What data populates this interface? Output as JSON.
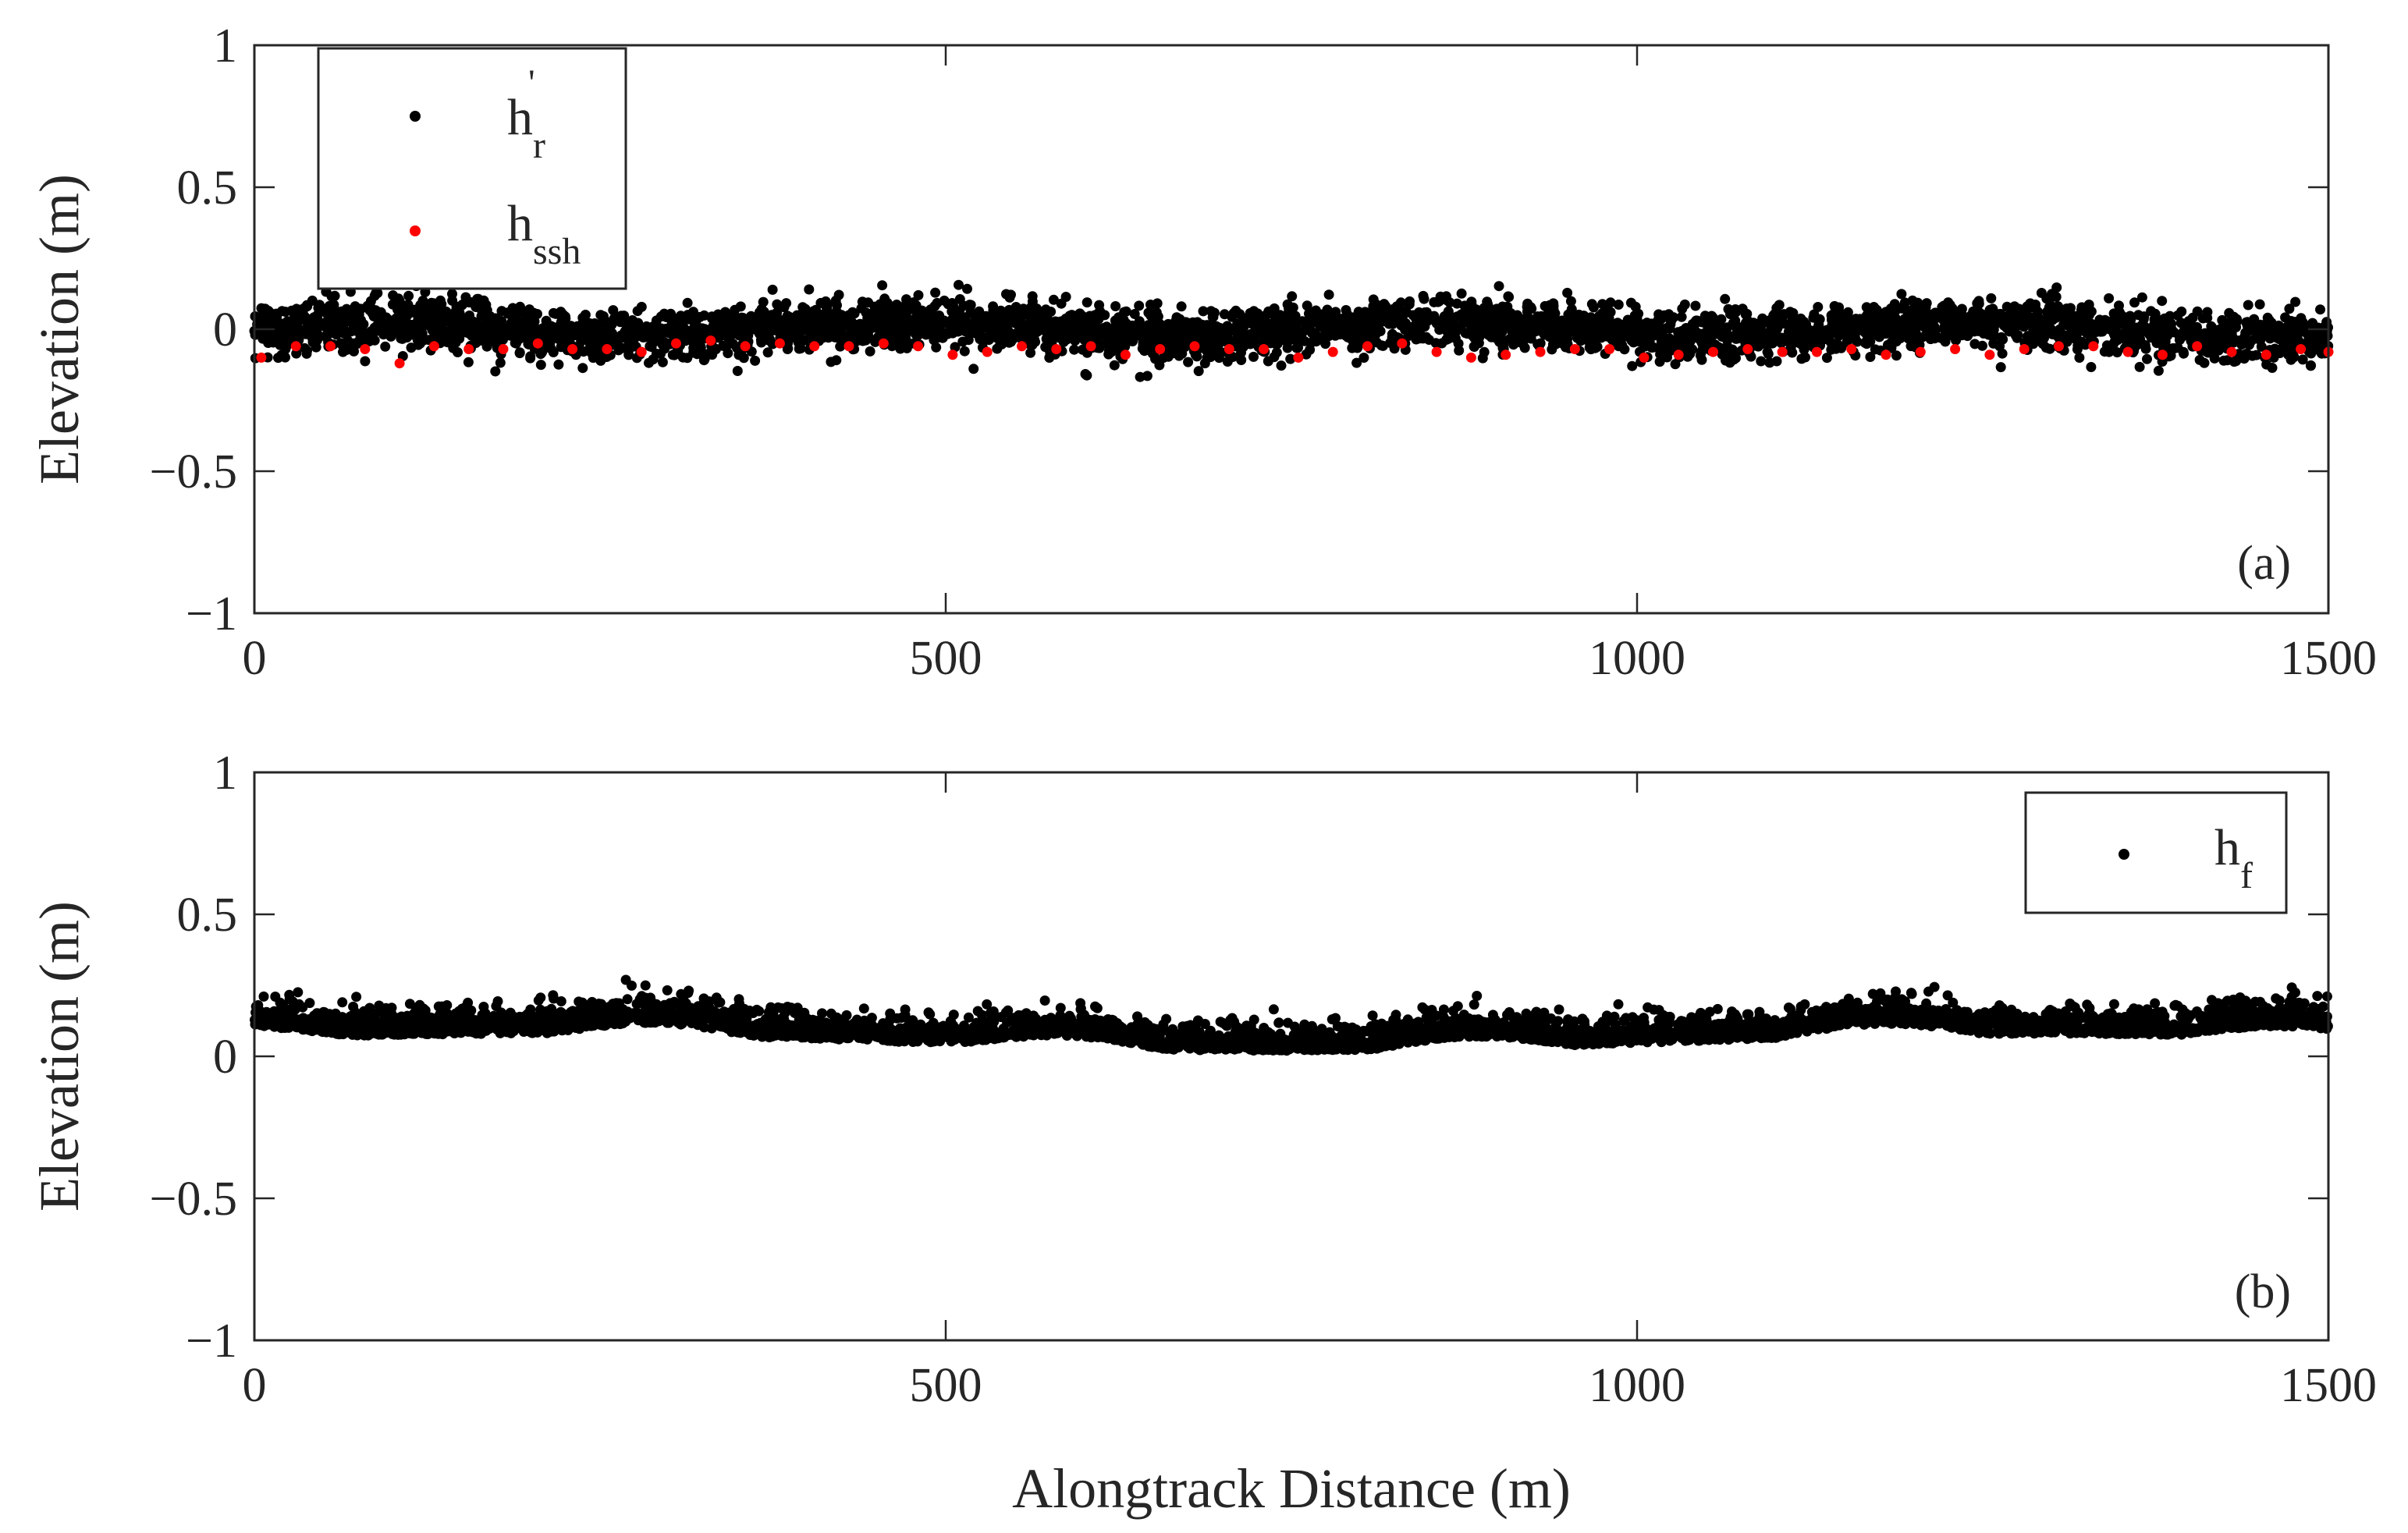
{
  "figure": {
    "xlabel": "Alongtrack Distance (m)"
  },
  "chart_data": [
    {
      "type": "scatter",
      "panel_label": "(a)",
      "xlabel": "",
      "ylabel": "Elevation (m)",
      "xlim": [
        0,
        1500
      ],
      "ylim": [
        -1,
        1
      ],
      "xticks": [
        0,
        500,
        1000,
        1500
      ],
      "yticks": [
        -1,
        -0.5,
        0,
        0.5,
        1
      ],
      "xtick_labels": [
        "0",
        "500",
        "1000",
        "1500"
      ],
      "ytick_labels": [
        "−1",
        "−0.5",
        "0",
        "0.5",
        "1"
      ],
      "grid": false,
      "legend_position": "top-left",
      "series": [
        {
          "legend_base": "h",
          "legend_sub": "r",
          "legend_sup": "'",
          "color": "#000000",
          "marker": "dot",
          "count": 4000,
          "x_range": [
            0,
            1500
          ],
          "y_mean": 0.0,
          "y_spread": 0.06,
          "y_min": -0.17,
          "y_max": 0.17
        },
        {
          "legend_base": "h",
          "legend_sub": "ssh",
          "color": "#ff0000",
          "marker": "dot",
          "x": [
            5,
            30,
            55,
            80,
            105,
            130,
            155,
            180,
            205,
            230,
            255,
            280,
            305,
            330,
            355,
            380,
            405,
            430,
            455,
            480,
            505,
            530,
            555,
            580,
            605,
            630,
            655,
            680,
            705,
            730,
            755,
            780,
            805,
            830,
            855,
            880,
            905,
            930,
            955,
            980,
            1005,
            1030,
            1055,
            1080,
            1105,
            1130,
            1155,
            1180,
            1205,
            1230,
            1255,
            1280,
            1305,
            1330,
            1355,
            1380,
            1405,
            1430,
            1455,
            1480,
            1500
          ],
          "y": [
            -0.1,
            -0.06,
            -0.06,
            -0.07,
            -0.12,
            -0.06,
            -0.07,
            -0.07,
            -0.05,
            -0.07,
            -0.07,
            -0.08,
            -0.05,
            -0.04,
            -0.06,
            -0.05,
            -0.06,
            -0.06,
            -0.05,
            -0.06,
            -0.09,
            -0.08,
            -0.06,
            -0.07,
            -0.06,
            -0.09,
            -0.07,
            -0.06,
            -0.07,
            -0.07,
            -0.1,
            -0.08,
            -0.06,
            -0.05,
            -0.08,
            -0.1,
            -0.09,
            -0.08,
            -0.07,
            -0.07,
            -0.1,
            -0.09,
            -0.08,
            -0.07,
            -0.08,
            -0.08,
            -0.07,
            -0.09,
            -0.08,
            -0.07,
            -0.09,
            -0.07,
            -0.06,
            -0.06,
            -0.08,
            -0.09,
            -0.06,
            -0.08,
            -0.09,
            -0.07,
            -0.08
          ]
        }
      ]
    },
    {
      "type": "scatter",
      "panel_label": "(b)",
      "xlabel": "Alongtrack Distance (m)",
      "ylabel": "Elevation (m)",
      "xlim": [
        0,
        1500
      ],
      "ylim": [
        -1,
        1
      ],
      "xticks": [
        0,
        500,
        1000,
        1500
      ],
      "yticks": [
        -1,
        -0.5,
        0,
        0.5,
        1
      ],
      "xtick_labels": [
        "0",
        "500",
        "1000",
        "1500"
      ],
      "ytick_labels": [
        "−1",
        "−0.5",
        "0",
        "0.5",
        "1"
      ],
      "grid": false,
      "legend_position": "top-right",
      "series": [
        {
          "legend_base": "h",
          "legend_sub": "f",
          "color": "#000000",
          "marker": "dot",
          "count": 4000,
          "x_range": [
            0,
            1500
          ],
          "y_mean": 0.08,
          "y_spread": 0.05,
          "y_min": 0.0,
          "y_max": 0.3
        }
      ]
    }
  ]
}
